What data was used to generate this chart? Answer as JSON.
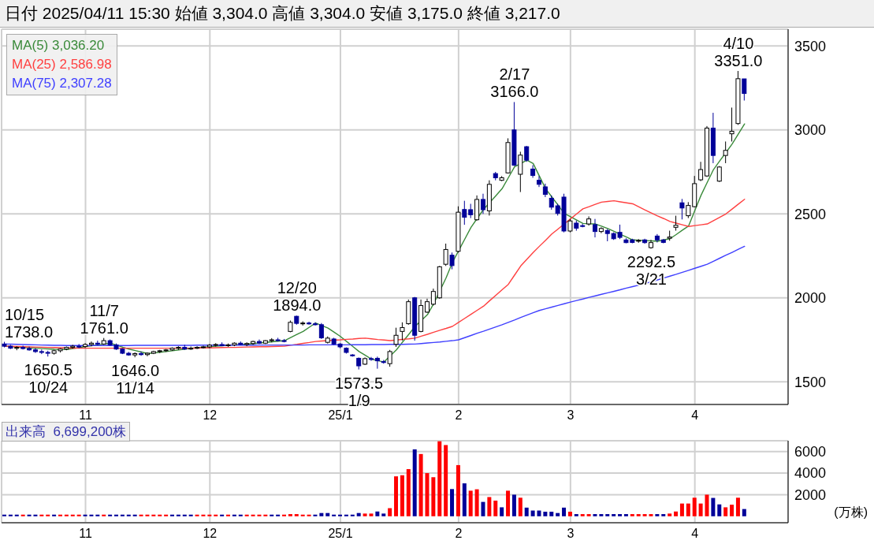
{
  "chart_data": [
    {
      "type": "candlestick",
      "title": "日付 2025/04/11 15:30 始値 3,304.0 高値 3,304.0 安値 3,175.0 終値 3,217.0",
      "categories": [
        null,
        null,
        null,
        null,
        null,
        null,
        null,
        null,
        null,
        null,
        null,
        null,
        null,
        "11",
        null,
        null,
        null,
        null,
        null,
        null,
        null,
        null,
        null,
        null,
        null,
        null,
        null,
        null,
        null,
        null,
        null,
        null,
        null,
        "12",
        null,
        null,
        null,
        null,
        null,
        null,
        null,
        null,
        null,
        null,
        null,
        null,
        null,
        null,
        null,
        null,
        null,
        null,
        null,
        null,
        "25/1",
        null,
        null,
        null,
        null,
        null,
        null,
        null,
        null,
        null,
        null,
        null,
        null,
        null,
        null,
        null,
        null,
        null,
        null,
        "2",
        null,
        null,
        null,
        null,
        null,
        null,
        null,
        null,
        null,
        null,
        null,
        null,
        null,
        null,
        null,
        null,
        null,
        "3",
        null,
        null,
        null,
        null,
        null,
        null,
        null,
        null,
        null,
        null,
        null,
        null,
        null,
        null,
        null,
        null,
        null,
        null,
        null,
        "4",
        null,
        null,
        null,
        null,
        null,
        null,
        null,
        null
      ],
      "ohlc": [
        [
          1725,
          1738,
          1705,
          1712
        ],
        [
          1712,
          1720,
          1695,
          1700
        ],
        [
          1700,
          1712,
          1688,
          1705
        ],
        [
          1705,
          1715,
          1692,
          1698
        ],
        [
          1698,
          1710,
          1685,
          1690
        ],
        [
          1690,
          1700,
          1672,
          1680
        ],
        [
          1680,
          1692,
          1665,
          1675
        ],
        [
          1675,
          1685,
          1650.5,
          1670
        ],
        [
          1670,
          1690,
          1662,
          1685
        ],
        [
          1685,
          1700,
          1675,
          1695
        ],
        [
          1695,
          1710,
          1688,
          1705
        ],
        [
          1705,
          1720,
          1698,
          1712
        ],
        [
          1712,
          1725,
          1700,
          1710
        ],
        [
          1710,
          1730,
          1702,
          1722
        ],
        [
          1722,
          1740,
          1712,
          1730
        ],
        [
          1730,
          1745,
          1718,
          1725
        ],
        [
          1725,
          1761,
          1720,
          1745
        ],
        [
          1745,
          1752,
          1715,
          1720
        ],
        [
          1720,
          1728,
          1690,
          1695
        ],
        [
          1695,
          1700,
          1665,
          1670
        ],
        [
          1670,
          1678,
          1655,
          1660
        ],
        [
          1660,
          1675,
          1646,
          1668
        ],
        [
          1668,
          1680,
          1655,
          1662
        ],
        [
          1662,
          1675,
          1652,
          1670
        ],
        [
          1670,
          1685,
          1665,
          1680
        ],
        [
          1680,
          1690,
          1672,
          1685
        ],
        [
          1685,
          1695,
          1678,
          1690
        ],
        [
          1690,
          1705,
          1685,
          1700
        ],
        [
          1700,
          1712,
          1690,
          1705
        ],
        [
          1705,
          1720,
          1690,
          1695
        ],
        [
          1695,
          1710,
          1690,
          1700
        ],
        [
          1700,
          1712,
          1695,
          1705
        ],
        [
          1705,
          1715,
          1698,
          1708
        ],
        [
          1708,
          1725,
          1700,
          1718
        ],
        [
          1718,
          1730,
          1710,
          1722
        ],
        [
          1722,
          1735,
          1712,
          1715
        ],
        [
          1715,
          1728,
          1708,
          1720
        ],
        [
          1720,
          1735,
          1712,
          1730
        ],
        [
          1730,
          1740,
          1718,
          1722
        ],
        [
          1722,
          1735,
          1712,
          1728
        ],
        [
          1728,
          1745,
          1720,
          1740
        ],
        [
          1740,
          1752,
          1725,
          1730
        ],
        [
          1730,
          1748,
          1725,
          1745
        ],
        [
          1745,
          1760,
          1735,
          1750
        ],
        [
          1750,
          1762,
          1740,
          1745
        ],
        [
          1745,
          1755,
          1735,
          1740
        ],
        [
          1800,
          1865,
          1795,
          1854
        ],
        [
          1890,
          1894,
          1840,
          1848
        ],
        [
          1848,
          1860,
          1835,
          1850
        ],
        [
          1850,
          1858,
          1840,
          1845
        ],
        [
          1845,
          1855,
          1835,
          1840
        ],
        [
          1840,
          1850,
          1755,
          1762
        ],
        [
          1735,
          1770,
          1728,
          1760
        ],
        [
          1755,
          1762,
          1720,
          1725
        ],
        [
          1725,
          1730,
          1700,
          1708
        ],
        [
          1700,
          1705,
          1668,
          1675
        ],
        [
          1660,
          1665,
          1650,
          1655
        ],
        [
          1640,
          1645,
          1573.5,
          1595
        ],
        [
          1605,
          1645,
          1600,
          1638
        ],
        [
          1638,
          1648,
          1625,
          1635
        ],
        [
          1640,
          1650,
          1578,
          1625
        ],
        [
          1620,
          1630,
          1608,
          1615
        ],
        [
          1608,
          1690,
          1590,
          1680
        ],
        [
          1723,
          1822,
          1708,
          1777
        ],
        [
          1800,
          1854,
          1746,
          1823
        ],
        [
          1846,
          1990,
          1840,
          1977
        ],
        [
          2000,
          2005,
          1745,
          1777
        ],
        [
          1800,
          1990,
          1795,
          1954
        ],
        [
          1915,
          1995,
          1910,
          1977
        ],
        [
          1962,
          2055,
          1955,
          2038
        ],
        [
          2000,
          2190,
          1995,
          2185
        ],
        [
          2200,
          2323,
          2190,
          2288
        ],
        [
          2254,
          2270,
          2170,
          2192
        ],
        [
          2277,
          2545,
          2270,
          2510
        ],
        [
          2526,
          2578,
          2435,
          2480
        ],
        [
          2525,
          2560,
          2475,
          2495
        ],
        [
          2465,
          2610,
          2460,
          2586
        ],
        [
          2586,
          2620,
          2500,
          2525
        ],
        [
          2518,
          2700,
          2490,
          2676
        ],
        [
          2740,
          2750,
          2700,
          2715
        ],
        [
          2700,
          2725,
          2695,
          2715
        ],
        [
          2744,
          2950,
          2740,
          2925
        ],
        [
          3000,
          3166,
          2785,
          2790
        ],
        [
          2736,
          2870,
          2630,
          2850
        ],
        [
          2900,
          2905,
          2810,
          2820
        ],
        [
          2767,
          2790,
          2715,
          2729
        ],
        [
          2700,
          2725,
          2660,
          2676
        ],
        [
          2661,
          2680,
          2600,
          2616
        ],
        [
          2593,
          2610,
          2525,
          2540
        ],
        [
          2548,
          2560,
          2490,
          2503
        ],
        [
          2600,
          2620,
          2390,
          2398
        ],
        [
          2398,
          2470,
          2390,
          2458
        ],
        [
          2445,
          2460,
          2400,
          2415
        ],
        [
          2430,
          2440,
          2420,
          2428
        ],
        [
          2440,
          2485,
          2430,
          2470
        ],
        [
          2436,
          2470,
          2360,
          2395
        ],
        [
          2395,
          2420,
          2385,
          2413
        ],
        [
          2401,
          2410,
          2337,
          2383
        ],
        [
          2383,
          2390,
          2345,
          2352
        ],
        [
          2390,
          2436,
          2350,
          2360
        ],
        [
          2345,
          2355,
          2325,
          2329
        ],
        [
          2345,
          2352,
          2325,
          2330
        ],
        [
          2340,
          2350,
          2328,
          2342
        ],
        [
          2345,
          2352,
          2322,
          2329
        ],
        [
          2299,
          2345,
          2292.5,
          2329
        ],
        [
          2368,
          2380,
          2330,
          2345
        ],
        [
          2345,
          2350,
          2325,
          2330
        ],
        [
          2355,
          2400,
          2340,
          2362
        ],
        [
          2420,
          2489,
          2400,
          2432
        ],
        [
          2566,
          2589,
          2467,
          2535
        ],
        [
          2489,
          2570,
          2475,
          2550
        ],
        [
          2543,
          2726,
          2540,
          2680
        ],
        [
          2703,
          2810,
          2695,
          2764
        ],
        [
          2726,
          3023,
          2720,
          3011
        ],
        [
          3011,
          3102,
          2802,
          2848
        ],
        [
          2695,
          2785,
          2690,
          2779
        ],
        [
          2848,
          2931,
          2802,
          2878
        ],
        [
          2977,
          3133,
          2931,
          2992
        ],
        [
          3038,
          3351,
          3030,
          3305
        ],
        [
          3304,
          3304,
          3175,
          3217
        ]
      ],
      "series": [
        {
          "type": "line",
          "name": "MA(5) 3,036.20",
          "color": "#3a8a3a",
          "values": [
            1712,
            1710,
            1707,
            1705,
            1702,
            1700,
            1698,
            1696,
            1694,
            1693,
            1692,
            1698,
            1704,
            1710,
            1715,
            1720,
            1725,
            1730,
            1718,
            1706,
            1695,
            1686,
            1677,
            1668,
            1672,
            1676,
            1680,
            1685,
            1690,
            1695,
            1700,
            1703,
            1706,
            1709,
            1712,
            1715,
            1718,
            1720,
            1723,
            1725,
            1728,
            1731,
            1735,
            1738,
            1742,
            1745,
            1763,
            1782,
            1800,
            1825,
            1850,
            1835,
            1820,
            1795,
            1770,
            1740,
            1710,
            1680,
            1658,
            1635,
            1626,
            1618,
            1654,
            1690,
            1737,
            1783,
            1830,
            1865,
            1900,
            1965,
            null,
            2120,
            2210,
            2280,
            2350,
            2420,
            2473,
            2526,
            2567,
            2608,
            2650,
            2715,
            2780,
            2800,
            2820,
            2800,
            2725,
            2650,
            2601,
            2552,
            2503,
            2483,
            2463,
            2443,
            2441,
            2440,
            2427,
            2413,
            2396,
            2379,
            2362,
            2345,
            2343,
            2341,
            2339,
            2337,
            2345,
            2352,
            2377,
            2403,
            2428,
            2520,
            2611,
            2688,
            2764,
            2815,
            2865,
            2916,
            2976,
            3036
          ]
        },
        {
          "type": "line",
          "name": "MA(25) 2,586.98",
          "color": "#ff4040",
          "values": [
            1712,
            1711,
            1710,
            1709,
            1708,
            1707,
            1706,
            1705,
            1704,
            1703,
            1702,
            1701,
            1700,
            1700,
            1700,
            1700,
            1700,
            1700,
            1700,
            1700,
            1700,
            1700,
            1700,
            1700,
            1700,
            1700,
            1700,
            1700,
            1700,
            1700,
            1700,
            1701,
            1702,
            1702,
            1703,
            1704,
            1705,
            1705,
            1706,
            1707,
            1708,
            1709,
            1709,
            1710,
            1711,
            1712,
            1718,
            1723,
            1729,
            1734,
            1740,
            1743,
            1745,
            1748,
            1750,
            1753,
            1755,
            1758,
            1760,
            1756,
            1752,
            1749,
            1745,
            1749,
            1753,
            1756,
            1760,
            1772,
            1783,
            1795,
            1807,
            1818,
            1830,
            1854,
            1878,
            1902,
            1926,
            1950,
            1983,
            2015,
            2048,
            2080,
            2135,
            2190,
            2230,
            2270,
            2307,
            2343,
            2380,
            2410,
            2440,
            2470,
            2500,
            2530,
            2543,
            2557,
            2570,
            2574,
            2578,
            2572,
            2566,
            2560,
            2542,
            2523,
            2505,
            2488,
            2472,
            2455,
            2445,
            2435,
            2425,
            2430,
            2435,
            2440,
            2460,
            2480,
            2500,
            2529,
            2558,
            2587
          ]
        },
        {
          "type": "line",
          "name": "MA(75) 2,307.28",
          "color": "#4040ff",
          "values": [
            1725,
            1724,
            1723,
            1722,
            1721,
            1720,
            1719,
            1718,
            1717,
            1717,
            1716,
            1716,
            1716,
            1716,
            1716,
            1716,
            1716,
            1716,
            1716,
            1716,
            1716,
            1717,
            1717,
            1717,
            1717,
            1717,
            1717,
            1717,
            1717,
            1717,
            1717,
            1718,
            1718,
            1718,
            1718,
            1718,
            1718,
            1718,
            1718,
            1718,
            1718,
            1719,
            1719,
            1719,
            1719,
            1719,
            1719,
            1719,
            1719,
            1720,
            1720,
            1720,
            1720,
            1720,
            1720,
            1720,
            1721,
            1721,
            1721,
            1722,
            1722,
            1722,
            1723,
            1723,
            1723,
            1724,
            1725,
            1728,
            1731,
            1734,
            1737,
            1741,
            1745,
            1750,
            1763,
            1776,
            1789,
            1801,
            1814,
            1827,
            1840,
            1854,
            1868,
            1883,
            1897,
            1911,
            1925,
            1935,
            1945,
            1955,
            1965,
            1975,
            1984,
            1993,
            2003,
            2012,
            2021,
            2030,
            2039,
            2048,
            2058,
            2067,
            2076,
            2085,
            2096,
            2107,
            2118,
            2129,
            2140,
            2152,
            2164,
            2176,
            2188,
            2200,
            2218,
            2236,
            2254,
            2271,
            2289,
            2307
          ]
        }
      ],
      "ylim": [
        1365,
        3600
      ],
      "yticks": [
        1500,
        2000,
        2500,
        3000,
        3500
      ],
      "grid": true,
      "legend": "top left",
      "annotations": [
        {
          "text": "10/15\n1738.0",
          "y": 1738
        },
        {
          "text": "1650.5\n10/24",
          "y": 1650.5
        },
        {
          "text": "11/7\n1761.0",
          "y": 1761
        },
        {
          "text": "1646.0\n11/14",
          "y": 1646
        },
        {
          "text": "12/20\n1894.0",
          "y": 1894
        },
        {
          "text": "1573.5\n1/9",
          "y": 1573.5
        },
        {
          "text": "2/17\n3166.0",
          "y": 3166
        },
        {
          "text": "2292.5\n3/21",
          "y": 2292.5
        },
        {
          "text": "4/10\n3351.0",
          "y": 3351
        }
      ]
    },
    {
      "type": "bar",
      "title": "出来高  6,699,200株",
      "ylabel": "(万株)",
      "categories": [
        null,
        null,
        null,
        null,
        null,
        null,
        null,
        null,
        null,
        null,
        null,
        null,
        null,
        "11",
        null,
        null,
        null,
        null,
        null,
        null,
        null,
        null,
        null,
        null,
        null,
        null,
        null,
        null,
        null,
        null,
        null,
        null,
        null,
        "12",
        null,
        null,
        null,
        null,
        null,
        null,
        null,
        null,
        null,
        null,
        null,
        null,
        null,
        null,
        null,
        null,
        null,
        null,
        null,
        null,
        "25/1",
        null,
        null,
        null,
        null,
        null,
        null,
        null,
        null,
        null,
        null,
        null,
        null,
        null,
        null,
        null,
        null,
        null,
        null,
        "2",
        null,
        null,
        null,
        null,
        null,
        null,
        null,
        null,
        null,
        null,
        null,
        null,
        null,
        null,
        null,
        null,
        null,
        "3",
        null,
        null,
        null,
        null,
        null,
        null,
        null,
        null,
        null,
        null,
        null,
        null,
        null,
        null,
        null,
        null,
        null,
        null,
        null,
        "4",
        null,
        null,
        null,
        null,
        null,
        null,
        null,
        null
      ],
      "values": [
        150,
        150,
        150,
        150,
        150,
        150,
        150,
        150,
        150,
        150,
        150,
        150,
        150,
        150,
        150,
        150,
        150,
        150,
        150,
        150,
        150,
        150,
        150,
        150,
        150,
        150,
        150,
        150,
        150,
        150,
        150,
        150,
        150,
        150,
        150,
        150,
        150,
        150,
        150,
        150,
        150,
        150,
        150,
        150,
        150,
        150,
        200,
        200,
        150,
        150,
        150,
        300,
        300,
        150,
        150,
        150,
        150,
        300,
        250,
        250,
        440,
        250,
        750,
        3700,
        3800,
        4370,
        6200,
        5770,
        4000,
        3620,
        6950,
        6600,
        2520,
        4740,
        3050,
        2370,
        2500,
        1330,
        1780,
        1450,
        830,
        2370,
        2000,
        1720,
        800,
        530,
        530,
        420,
        420,
        300,
        800,
        420,
        200,
        200,
        200,
        200,
        200,
        200,
        200,
        200,
        200,
        200,
        200,
        200,
        200,
        200,
        200,
        250,
        440,
        1180,
        1180,
        1720,
        1180,
        2000,
        1700,
        1100,
        830,
        1070,
        1720,
        670
      ],
      "colors": [
        "#000099",
        "#000099",
        "#000099",
        "#ff0000",
        "#000099",
        "#000099",
        "#ff0000",
        "#ff0000",
        "#000099",
        "#ff0000",
        "#ff0000",
        "#ff0000",
        "#ff0000",
        "#000099",
        "#000099",
        "#000099",
        "#ff0000",
        "#000099",
        "#000099",
        "#000099",
        "#000099",
        "#000099",
        "#ff0000",
        "#ff0000",
        "#ff0000",
        "#ff0000",
        "#ff0000",
        "#000099",
        "#000099",
        "#000099",
        "#000099",
        "#ff0000",
        "#ff0000",
        "#ff0000",
        "#ff0000",
        "#000099",
        "#ff0000",
        "#000099",
        "#000099",
        "#ff0000",
        "#ff0000",
        "#ff0000",
        "#ff0000",
        "#000099",
        "#000099",
        "#ff0000",
        "#ff0000",
        "#ff0000",
        "#ff0000",
        "#ff0000",
        "#000099",
        "#000099",
        "#000099",
        "#000099",
        "#000099",
        "#000099",
        "#000099",
        "#000099",
        "#ff0000",
        "#ff0000",
        "#000099",
        "#000099",
        "#ff0000",
        "#ff0000",
        "#ff0000",
        "#ff0000",
        "#000099",
        "#ff0000",
        "#ff0000",
        "#ff0000",
        "#ff0000",
        "#ff0000",
        "#000099",
        "#ff0000",
        "#000099",
        "#ff0000",
        "#ff0000",
        "#000099",
        "#ff0000",
        "#ff0000",
        "#000099",
        "#ff0000",
        "#000099",
        "#ff0000",
        "#000099",
        "#000099",
        "#000099",
        "#000099",
        "#000099",
        "#000099",
        "#000099",
        "#ff0000",
        "#000099",
        "#ff0000",
        "#ff0000",
        "#000099",
        "#000099",
        "#000099",
        "#000099",
        "#000099",
        "#000099",
        "#ff0000",
        "#ff0000",
        "#ff0000",
        "#ff0000",
        "#000099",
        "#000099",
        "#ff0000",
        "#ff0000",
        "#ff0000",
        "#ff0000",
        "#ff0000",
        "#ff0000",
        "#ff0000",
        "#000099",
        "#000099",
        "#ff0000",
        "#ff0000",
        "#ff0000",
        "#000099"
      ],
      "ylim": [
        -600,
        7000
      ],
      "yticks": [
        2000,
        4000,
        6000
      ],
      "grid": true
    }
  ]
}
